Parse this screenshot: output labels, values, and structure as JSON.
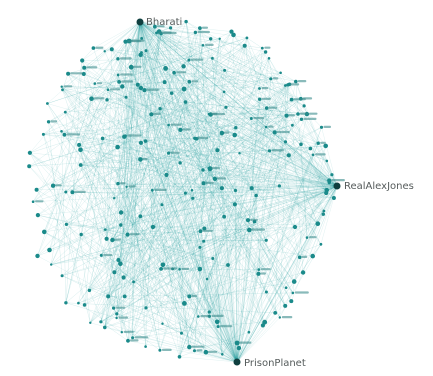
{
  "graph": {
    "hubs": [
      {
        "id": "hub-top",
        "label": "Bharati"
      },
      {
        "id": "hub-right",
        "label": "RealAlexJones"
      },
      {
        "id": "hub-bottom",
        "label": "PrisonPlanet"
      }
    ],
    "colors": {
      "edge": "#1c9a9a",
      "node": "#1a8a8a",
      "hub": "#0f3f3f",
      "label": "#555b5b"
    }
  }
}
